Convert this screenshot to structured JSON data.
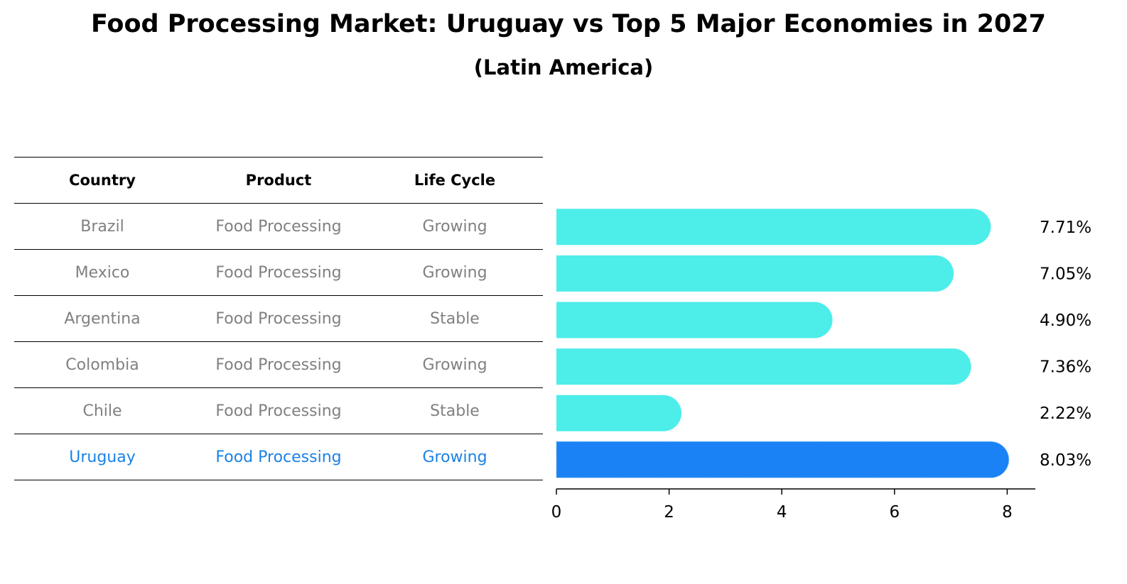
{
  "title": "Food Processing Market: Uruguay vs Top 5 Major Economies in 2027",
  "subtitle": "(Latin America)",
  "table": {
    "headers": [
      "Country",
      "Product",
      "Life Cycle"
    ],
    "rows": [
      {
        "country": "Brazil",
        "product": "Food Processing",
        "life_cycle": "Growing"
      },
      {
        "country": "Mexico",
        "product": "Food Processing",
        "life_cycle": "Growing"
      },
      {
        "country": "Argentina",
        "product": "Food Processing",
        "life_cycle": "Stable"
      },
      {
        "country": "Colombia",
        "product": "Food Processing",
        "life_cycle": "Growing"
      },
      {
        "country": "Chile",
        "product": "Food Processing",
        "life_cycle": "Stable"
      },
      {
        "country": "Uruguay",
        "product": "Food Processing",
        "life_cycle": "Growing"
      }
    ]
  },
  "colors": {
    "bar": "#4dedea",
    "highlight_bar": "#1a82f4",
    "highlight_text": "#1a82e6",
    "row_text": "#808080"
  },
  "chart_data": {
    "type": "bar",
    "orientation": "horizontal",
    "categories": [
      "Brazil",
      "Mexico",
      "Argentina",
      "Colombia",
      "Chile",
      "Uruguay"
    ],
    "values": [
      7.71,
      7.05,
      4.9,
      7.36,
      2.22,
      8.03
    ],
    "value_labels": [
      "7.71%",
      "7.05%",
      "4.90%",
      "7.36%",
      "2.22%",
      "8.03%"
    ],
    "highlight_category": "Uruguay",
    "xticks": [
      0,
      2,
      4,
      6,
      8
    ],
    "xlim": [
      0,
      8.5
    ],
    "grid": false
  }
}
